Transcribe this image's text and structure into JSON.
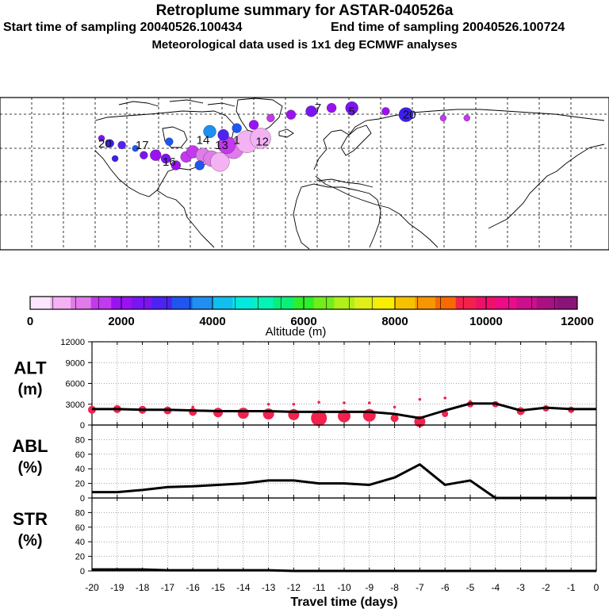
{
  "header": {
    "title": "Retroplume summary for ASTAR-040526a",
    "start_time": "Start time of sampling 20040526.100434",
    "end_time": "End time of sampling 20040526.100724",
    "met_data": "Meteorological data used is 1x1 deg ECMWF analyses"
  },
  "map": {
    "labels": [
      {
        "text": "20",
        "lon": -118,
        "lat": 53
      },
      {
        "text": "17",
        "lon": -96,
        "lat": 52
      },
      {
        "text": "16",
        "lon": -80,
        "lat": 42
      },
      {
        "text": "14",
        "lon": -60,
        "lat": 55
      },
      {
        "text": "13",
        "lon": -49,
        "lat": 52
      },
      {
        "text": "1",
        "lon": -40,
        "lat": 55
      },
      {
        "text": "12",
        "lon": -25,
        "lat": 54
      },
      {
        "text": "7",
        "lon": 8,
        "lat": 74
      },
      {
        "text": "5",
        "lon": 28,
        "lat": 72
      },
      {
        "text": "20",
        "lon": 62,
        "lat": 70
      }
    ]
  },
  "colorbar": {
    "ticks": [
      "0",
      "2000",
      "4000",
      "6000",
      "8000",
      "10000",
      "12000"
    ],
    "label": "Altitude (m)",
    "colors": [
      "#fde6fd",
      "#f4b2f4",
      "#e07be9",
      "#c339ef",
      "#9a12f2",
      "#7a15f2",
      "#4d23f2",
      "#1f56f0",
      "#1f8ff0",
      "#10bff0",
      "#05e8e0",
      "#05f2b8",
      "#08f07a",
      "#2fee2a",
      "#71ee1a",
      "#b0ef18",
      "#e0ee1a",
      "#f7ee00",
      "#f6c200",
      "#f79600",
      "#f76a00",
      "#f2224d",
      "#f0106a",
      "#ee0b8a",
      "#cc0f8d",
      "#a81084",
      "#8a137a"
    ]
  },
  "chart_data": [
    {
      "type": "line",
      "panel": "ALT",
      "ylabel_main": "ALT",
      "ylabel_unit": "(m)",
      "ylim": [
        0,
        12000
      ],
      "yticks": [
        "12000",
        "9000",
        "6000",
        "3000",
        "0"
      ],
      "x": [
        -20,
        -19,
        -18,
        -17,
        -16,
        -15,
        -14,
        -13,
        -12,
        -11,
        -10,
        -9,
        -8,
        -7,
        -6,
        -5,
        -4,
        -3,
        -2,
        -1,
        0
      ],
      "values": [
        2300,
        2300,
        2200,
        2200,
        2100,
        2000,
        2000,
        2000,
        1900,
        1900,
        1900,
        1900,
        1600,
        1000,
        2100,
        3100,
        3100,
        2100,
        2500,
        2300,
        2300
      ],
      "markers": [
        {
          "x": -20,
          "y": 2200,
          "r": 5
        },
        {
          "x": -19,
          "y": 2300,
          "r": 5
        },
        {
          "x": -18,
          "y": 2200,
          "r": 5
        },
        {
          "x": -17,
          "y": 2100,
          "r": 5
        },
        {
          "x": -16,
          "y": 1900,
          "r": 5
        },
        {
          "x": -15,
          "y": 1800,
          "r": 6
        },
        {
          "x": -14,
          "y": 1700,
          "r": 7
        },
        {
          "x": -13,
          "y": 1600,
          "r": 7
        },
        {
          "x": -12,
          "y": 1500,
          "r": 7
        },
        {
          "x": -11,
          "y": 1000,
          "r": 10
        },
        {
          "x": -10,
          "y": 1300,
          "r": 8
        },
        {
          "x": -9,
          "y": 1400,
          "r": 8
        },
        {
          "x": -8,
          "y": 1000,
          "r": 5
        },
        {
          "x": -7,
          "y": 500,
          "r": 7
        },
        {
          "x": -6,
          "y": 1600,
          "r": 4
        },
        {
          "x": -5,
          "y": 3000,
          "r": 4
        },
        {
          "x": -4,
          "y": 3000,
          "r": 4
        },
        {
          "x": -3,
          "y": 2000,
          "r": 5
        },
        {
          "x": -2,
          "y": 2400,
          "r": 4
        },
        {
          "x": -1,
          "y": 2200,
          "r": 4
        }
      ]
    },
    {
      "type": "line",
      "panel": "ABL",
      "ylabel_main": "ABL",
      "ylabel_unit": "(%)",
      "ylim": [
        0,
        100
      ],
      "yticks": [
        "80",
        "60",
        "40",
        "20",
        "0"
      ],
      "x": [
        -20,
        -19,
        -18,
        -17,
        -16,
        -15,
        -14,
        -13,
        -12,
        -11,
        -10,
        -9,
        -8,
        -7,
        -6,
        -5,
        -4,
        -3,
        -2,
        -1,
        0
      ],
      "values": [
        8,
        8,
        11,
        15,
        16,
        18,
        20,
        24,
        24,
        20,
        20,
        18,
        28,
        46,
        18,
        24,
        0,
        0,
        0,
        0,
        0
      ]
    },
    {
      "type": "line",
      "panel": "STR",
      "ylabel_main": "STR",
      "ylabel_unit": "(%)",
      "ylim": [
        0,
        100
      ],
      "yticks": [
        "80",
        "60",
        "40",
        "20",
        "0"
      ],
      "xlabel": "Travel time (days)",
      "xticks": [
        "-20",
        "-19",
        "-18",
        "-17",
        "-16",
        "-15",
        "-14",
        "-13",
        "-12",
        "-11",
        "-10",
        "-9",
        "-8",
        "-7",
        "-6",
        "-5",
        "-4",
        "-3",
        "-2",
        "-1",
        "0"
      ],
      "x": [
        -20,
        -19,
        -18,
        -17,
        -16,
        -15,
        -14,
        -13,
        -12,
        -11,
        -10,
        -9,
        -8,
        -7,
        -6,
        -5,
        -4,
        -3,
        -2,
        -1,
        0
      ],
      "values": [
        2,
        2,
        2,
        1,
        1,
        1,
        1,
        1,
        0,
        0,
        0,
        0,
        0,
        0,
        0,
        0,
        0,
        0,
        0,
        0,
        0
      ]
    }
  ]
}
